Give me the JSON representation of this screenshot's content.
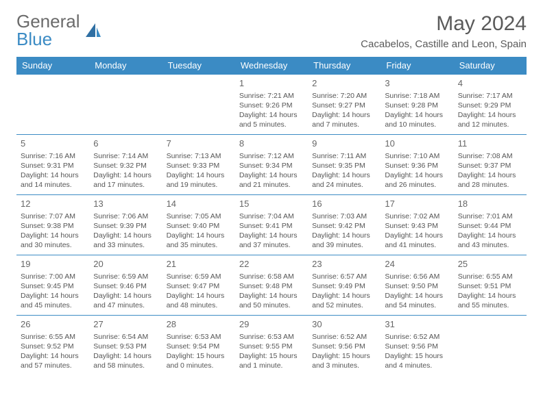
{
  "brand": {
    "part1": "General",
    "part2": "Blue"
  },
  "title": "May 2024",
  "location": "Cacabelos, Castille and Leon, Spain",
  "colors": {
    "header_bg": "#3b8bc4",
    "header_text": "#ffffff",
    "border": "#3b8bc4",
    "text": "#555555",
    "title_text": "#5a5a5a"
  },
  "weekdays": [
    "Sunday",
    "Monday",
    "Tuesday",
    "Wednesday",
    "Thursday",
    "Friday",
    "Saturday"
  ],
  "weeks": [
    [
      null,
      null,
      null,
      {
        "n": "1",
        "sr": "7:21 AM",
        "ss": "9:26 PM",
        "dl": "14 hours and 5 minutes."
      },
      {
        "n": "2",
        "sr": "7:20 AM",
        "ss": "9:27 PM",
        "dl": "14 hours and 7 minutes."
      },
      {
        "n": "3",
        "sr": "7:18 AM",
        "ss": "9:28 PM",
        "dl": "14 hours and 10 minutes."
      },
      {
        "n": "4",
        "sr": "7:17 AM",
        "ss": "9:29 PM",
        "dl": "14 hours and 12 minutes."
      }
    ],
    [
      {
        "n": "5",
        "sr": "7:16 AM",
        "ss": "9:31 PM",
        "dl": "14 hours and 14 minutes."
      },
      {
        "n": "6",
        "sr": "7:14 AM",
        "ss": "9:32 PM",
        "dl": "14 hours and 17 minutes."
      },
      {
        "n": "7",
        "sr": "7:13 AM",
        "ss": "9:33 PM",
        "dl": "14 hours and 19 minutes."
      },
      {
        "n": "8",
        "sr": "7:12 AM",
        "ss": "9:34 PM",
        "dl": "14 hours and 21 minutes."
      },
      {
        "n": "9",
        "sr": "7:11 AM",
        "ss": "9:35 PM",
        "dl": "14 hours and 24 minutes."
      },
      {
        "n": "10",
        "sr": "7:10 AM",
        "ss": "9:36 PM",
        "dl": "14 hours and 26 minutes."
      },
      {
        "n": "11",
        "sr": "7:08 AM",
        "ss": "9:37 PM",
        "dl": "14 hours and 28 minutes."
      }
    ],
    [
      {
        "n": "12",
        "sr": "7:07 AM",
        "ss": "9:38 PM",
        "dl": "14 hours and 30 minutes."
      },
      {
        "n": "13",
        "sr": "7:06 AM",
        "ss": "9:39 PM",
        "dl": "14 hours and 33 minutes."
      },
      {
        "n": "14",
        "sr": "7:05 AM",
        "ss": "9:40 PM",
        "dl": "14 hours and 35 minutes."
      },
      {
        "n": "15",
        "sr": "7:04 AM",
        "ss": "9:41 PM",
        "dl": "14 hours and 37 minutes."
      },
      {
        "n": "16",
        "sr": "7:03 AM",
        "ss": "9:42 PM",
        "dl": "14 hours and 39 minutes."
      },
      {
        "n": "17",
        "sr": "7:02 AM",
        "ss": "9:43 PM",
        "dl": "14 hours and 41 minutes."
      },
      {
        "n": "18",
        "sr": "7:01 AM",
        "ss": "9:44 PM",
        "dl": "14 hours and 43 minutes."
      }
    ],
    [
      {
        "n": "19",
        "sr": "7:00 AM",
        "ss": "9:45 PM",
        "dl": "14 hours and 45 minutes."
      },
      {
        "n": "20",
        "sr": "6:59 AM",
        "ss": "9:46 PM",
        "dl": "14 hours and 47 minutes."
      },
      {
        "n": "21",
        "sr": "6:59 AM",
        "ss": "9:47 PM",
        "dl": "14 hours and 48 minutes."
      },
      {
        "n": "22",
        "sr": "6:58 AM",
        "ss": "9:48 PM",
        "dl": "14 hours and 50 minutes."
      },
      {
        "n": "23",
        "sr": "6:57 AM",
        "ss": "9:49 PM",
        "dl": "14 hours and 52 minutes."
      },
      {
        "n": "24",
        "sr": "6:56 AM",
        "ss": "9:50 PM",
        "dl": "14 hours and 54 minutes."
      },
      {
        "n": "25",
        "sr": "6:55 AM",
        "ss": "9:51 PM",
        "dl": "14 hours and 55 minutes."
      }
    ],
    [
      {
        "n": "26",
        "sr": "6:55 AM",
        "ss": "9:52 PM",
        "dl": "14 hours and 57 minutes."
      },
      {
        "n": "27",
        "sr": "6:54 AM",
        "ss": "9:53 PM",
        "dl": "14 hours and 58 minutes."
      },
      {
        "n": "28",
        "sr": "6:53 AM",
        "ss": "9:54 PM",
        "dl": "15 hours and 0 minutes."
      },
      {
        "n": "29",
        "sr": "6:53 AM",
        "ss": "9:55 PM",
        "dl": "15 hours and 1 minute."
      },
      {
        "n": "30",
        "sr": "6:52 AM",
        "ss": "9:56 PM",
        "dl": "15 hours and 3 minutes."
      },
      {
        "n": "31",
        "sr": "6:52 AM",
        "ss": "9:56 PM",
        "dl": "15 hours and 4 minutes."
      },
      null
    ]
  ],
  "labels": {
    "sunrise": "Sunrise:",
    "sunset": "Sunset:",
    "daylight": "Daylight:"
  }
}
